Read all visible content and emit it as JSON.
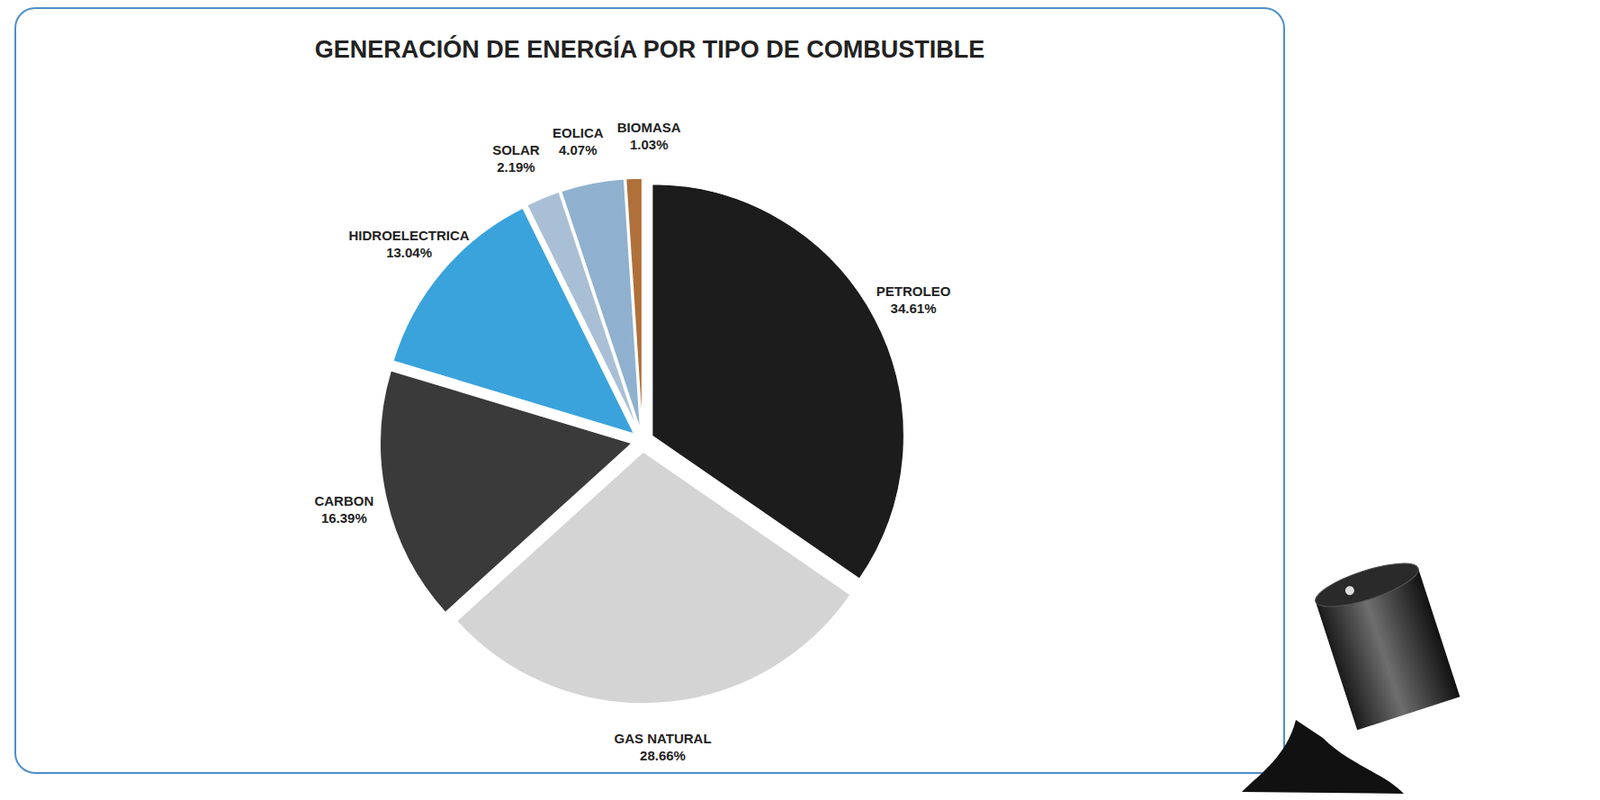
{
  "chart_data": {
    "type": "pie",
    "title": "GENERACIÓN DE ENERGÍA POR TIPO DE COMBUSTIBLE",
    "categories": [
      "PETROLEO",
      "GAS NATURAL",
      "CARBON",
      "HIDROELECTRICA",
      "SOLAR",
      "EOLICA",
      "BIOMASA"
    ],
    "values": [
      34.61,
      28.66,
      16.39,
      13.04,
      2.19,
      4.07,
      1.03
    ],
    "value_labels": [
      "34.61%",
      "28.66%",
      "16.39%",
      "13.04%",
      "2.19%",
      "4.07%",
      "1.03%"
    ],
    "colors": [
      "#1c1c1c",
      "#d4d4d4",
      "#3a3a3a",
      "#3aa3dc",
      "#a9bfd6",
      "#8fb1cf",
      "#b0703a"
    ],
    "data_labels": true
  }
}
